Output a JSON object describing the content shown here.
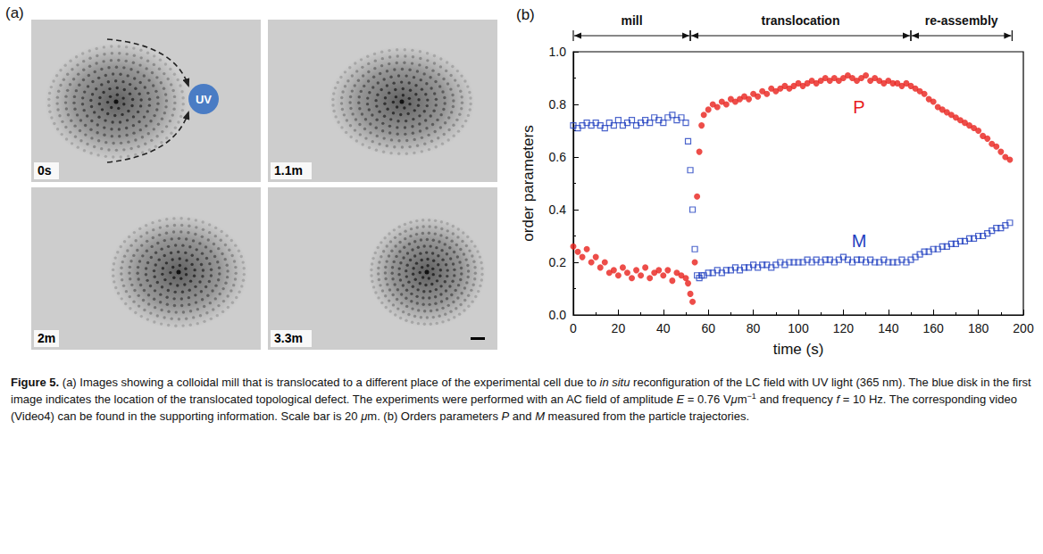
{
  "panel_a": {
    "label": "(a)",
    "frames": [
      "0s",
      "1.1m",
      "2m",
      "3.3m"
    ],
    "marker_label": "UV"
  },
  "chart_data": {
    "panel_label": "(b)",
    "type": "scatter",
    "xlabel": "time (s)",
    "ylabel": "order parameters",
    "xlim": [
      0,
      200
    ],
    "xticks": [
      0,
      20,
      40,
      60,
      80,
      100,
      120,
      140,
      160,
      180,
      200
    ],
    "ylim": [
      0,
      1
    ],
    "yticks": [
      {
        "value": 0,
        "label": "0.0"
      },
      0.2,
      0.4,
      0.6,
      0.8,
      {
        "value": 1,
        "label": "1.0"
      }
    ],
    "grid": false,
    "x": [
      0,
      2,
      4,
      6,
      8,
      10,
      12,
      14,
      16,
      18,
      20,
      22,
      24,
      26,
      28,
      30,
      32,
      34,
      36,
      38,
      40,
      42,
      44,
      46,
      48,
      50,
      51,
      52,
      53,
      54,
      55,
      56,
      57,
      58,
      60,
      62,
      64,
      66,
      68,
      70,
      72,
      74,
      76,
      78,
      80,
      82,
      84,
      86,
      88,
      90,
      92,
      94,
      96,
      98,
      100,
      102,
      104,
      106,
      108,
      110,
      112,
      114,
      116,
      118,
      120,
      122,
      124,
      126,
      128,
      130,
      132,
      134,
      136,
      138,
      140,
      142,
      144,
      146,
      148,
      150,
      152,
      154,
      156,
      158,
      160,
      162,
      164,
      166,
      168,
      170,
      172,
      174,
      176,
      178,
      180,
      182,
      184,
      186,
      188,
      190,
      192,
      194
    ],
    "series": [
      {
        "name": "P",
        "color": "#e8201c",
        "marker": "circle",
        "values": [
          0.26,
          0.24,
          0.22,
          0.25,
          0.2,
          0.22,
          0.18,
          0.2,
          0.16,
          0.17,
          0.15,
          0.18,
          0.16,
          0.14,
          0.17,
          0.15,
          0.18,
          0.14,
          0.16,
          0.17,
          0.15,
          0.17,
          0.13,
          0.16,
          0.15,
          0.14,
          0.12,
          0.08,
          0.05,
          0.2,
          0.45,
          0.62,
          0.72,
          0.76,
          0.78,
          0.8,
          0.79,
          0.81,
          0.8,
          0.82,
          0.81,
          0.82,
          0.83,
          0.82,
          0.84,
          0.83,
          0.85,
          0.84,
          0.86,
          0.85,
          0.86,
          0.87,
          0.86,
          0.87,
          0.88,
          0.87,
          0.88,
          0.89,
          0.88,
          0.89,
          0.9,
          0.89,
          0.9,
          0.89,
          0.9,
          0.91,
          0.9,
          0.89,
          0.9,
          0.91,
          0.89,
          0.9,
          0.89,
          0.88,
          0.89,
          0.88,
          0.88,
          0.87,
          0.88,
          0.87,
          0.86,
          0.85,
          0.84,
          0.82,
          0.81,
          0.79,
          0.78,
          0.77,
          0.76,
          0.75,
          0.74,
          0.73,
          0.72,
          0.71,
          0.7,
          0.68,
          0.67,
          0.65,
          0.64,
          0.62,
          0.6,
          0.59
        ]
      },
      {
        "name": "M",
        "color": "#1f3fbf",
        "marker": "open_square",
        "values": [
          0.72,
          0.71,
          0.72,
          0.73,
          0.72,
          0.73,
          0.72,
          0.71,
          0.73,
          0.72,
          0.74,
          0.72,
          0.73,
          0.74,
          0.72,
          0.73,
          0.74,
          0.73,
          0.75,
          0.74,
          0.73,
          0.75,
          0.76,
          0.74,
          0.75,
          0.73,
          0.66,
          0.55,
          0.4,
          0.25,
          0.15,
          0.14,
          0.15,
          0.15,
          0.16,
          0.16,
          0.17,
          0.16,
          0.17,
          0.17,
          0.18,
          0.17,
          0.18,
          0.18,
          0.19,
          0.18,
          0.19,
          0.19,
          0.18,
          0.19,
          0.2,
          0.19,
          0.2,
          0.2,
          0.2,
          0.2,
          0.21,
          0.2,
          0.21,
          0.2,
          0.21,
          0.21,
          0.2,
          0.21,
          0.22,
          0.21,
          0.2,
          0.21,
          0.21,
          0.2,
          0.21,
          0.2,
          0.2,
          0.21,
          0.2,
          0.2,
          0.2,
          0.21,
          0.2,
          0.21,
          0.22,
          0.23,
          0.24,
          0.24,
          0.25,
          0.25,
          0.26,
          0.26,
          0.27,
          0.27,
          0.28,
          0.28,
          0.29,
          0.29,
          0.3,
          0.3,
          0.31,
          0.32,
          0.33,
          0.33,
          0.34,
          0.35
        ]
      }
    ],
    "phases": [
      {
        "label": "mill",
        "start": 0,
        "end": 52
      },
      {
        "label": "translocation",
        "start": 52,
        "end": 150
      },
      {
        "label": "re-assembly",
        "start": 150,
        "end": 195
      }
    ],
    "annotations": [
      {
        "text": "P",
        "x": 127,
        "y": 0.79,
        "color": "#e8201c"
      },
      {
        "text": "M",
        "x": 127,
        "y": 0.28,
        "color": "#1f3fbf"
      }
    ]
  },
  "caption": [
    {
      "text": "Figure 5.",
      "style": "bold"
    },
    {
      "text": " (a) Images showing a colloidal mill that is translocated to a different place of the experimental cell due to ",
      "style": "normal"
    },
    {
      "text": "in situ",
      "style": "italic"
    },
    {
      "text": " reconfiguration of the LC field with UV light (365 nm). The blue disk in the first image indicates the location of the translocated topological defect. The experiments were performed with an AC field of amplitude ",
      "style": "normal"
    },
    {
      "text": "E",
      "style": "italic"
    },
    {
      "text": " = 0.76 V",
      "style": "normal"
    },
    {
      "text": "μ",
      "style": "italic"
    },
    {
      "text": "m",
      "style": "normal"
    },
    {
      "text": "−1",
      "style": "sup"
    },
    {
      "text": " and frequency ",
      "style": "normal"
    },
    {
      "text": "f",
      "style": "italic"
    },
    {
      "text": " = 10  Hz. The corresponding video (Video4) can be found in the supporting information. Scale bar is 20 ",
      "style": "normal"
    },
    {
      "text": "μ",
      "style": "italic"
    },
    {
      "text": "m. (b) Orders parameters ",
      "style": "normal"
    },
    {
      "text": "P",
      "style": "italic"
    },
    {
      "text": " and ",
      "style": "normal"
    },
    {
      "text": "M",
      "style": "italic"
    },
    {
      "text": " measured from the particle trajectories.",
      "style": "normal"
    }
  ]
}
